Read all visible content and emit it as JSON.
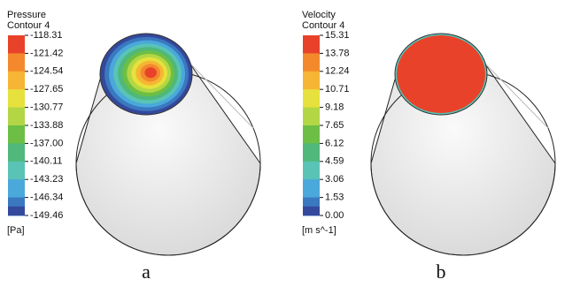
{
  "panels": [
    {
      "title": "Pressure",
      "subtitle": "Contour 4",
      "levels": [
        "-118.31",
        "-121.42",
        "-124.54",
        "-127.65",
        "-130.77",
        "-133.88",
        "-137.00",
        "-140.11",
        "-143.23",
        "-146.34",
        "-149.46"
      ],
      "colors": [
        "#e8432a",
        "#f3892c",
        "#f6b534",
        "#e6e13c",
        "#b3d645",
        "#6cbf44",
        "#4fb87a",
        "#59c3b6",
        "#4aa8db",
        "#3a78c0",
        "#34489c"
      ],
      "unit": "[Pa]",
      "caption": "a"
    },
    {
      "title": "Velocity",
      "subtitle": "Contour 4",
      "levels": [
        "15.31",
        "13.78",
        "12.24",
        "10.71",
        "9.18",
        "7.65",
        "6.12",
        "4.59",
        "3.06",
        "1.53",
        "0.00"
      ],
      "colors": [
        "#e8432a",
        "#f3892c",
        "#f6b534",
        "#e6e13c",
        "#b3d645",
        "#6cbf44",
        "#4fb87a",
        "#59c3b6",
        "#4aa8db",
        "#3a78c0",
        "#34489c"
      ],
      "unit": "[m s^-1]",
      "caption": "b"
    }
  ]
}
